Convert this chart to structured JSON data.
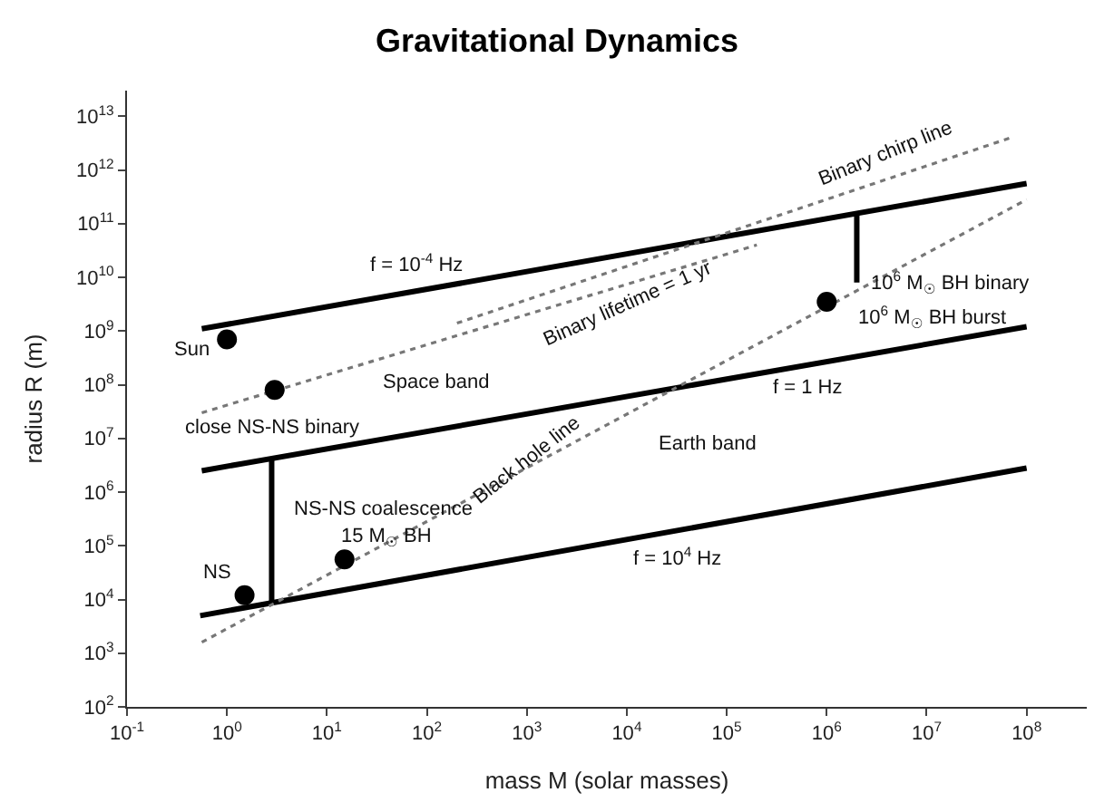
{
  "chart_data": {
    "type": "line",
    "title": "Gravitational Dynamics",
    "xlabel": "mass M (solar masses)",
    "ylabel": "radius R (m)",
    "log": "xy",
    "xlim": [
      0.1,
      400000000
    ],
    "ylim": [
      100,
      30000000000000
    ],
    "xticks": [
      {
        "value": 0.1,
        "label": "10$^{-1}$"
      },
      {
        "value": 1,
        "label": "10$^{0}$"
      },
      {
        "value": 10,
        "label": "10$^{1}$"
      },
      {
        "value": 100,
        "label": "10$^{2}$"
      },
      {
        "value": 1000,
        "label": "10$^{3}$"
      },
      {
        "value": 10000,
        "label": "10$^{4}$"
      },
      {
        "value": 100000,
        "label": "10$^{5}$"
      },
      {
        "value": 1000000,
        "label": "10$^{6}$"
      },
      {
        "value": 10000000,
        "label": "10$^{7}$"
      },
      {
        "value": 100000000,
        "label": "10$^{8}$"
      }
    ],
    "yticks": [
      {
        "value": 100,
        "label": "10$^{2}$"
      },
      {
        "value": 1000,
        "label": "10$^{3}$"
      },
      {
        "value": 10000,
        "label": "10$^{4}$"
      },
      {
        "value": 100000,
        "label": "10$^{5}$"
      },
      {
        "value": 1000000,
        "label": "10$^{6}$"
      },
      {
        "value": 10000000,
        "label": "10$^{7}$"
      },
      {
        "value": 100000000,
        "label": "10$^{8}$"
      },
      {
        "value": 1000000000,
        "label": "10$^{9}$"
      },
      {
        "value": 10000000000,
        "label": "10$^{10}$"
      },
      {
        "value": 100000000000,
        "label": "10$^{11}$"
      },
      {
        "value": 1000000000000,
        "label": "10$^{12}$"
      },
      {
        "value": 10000000000000,
        "label": "10$^{13}$"
      }
    ],
    "series": [
      {
        "color": "#000000",
        "line_style": "solid",
        "x": [
          0.56,
          100000000
        ],
        "values": [
          1100000000,
          560000000000
        ]
      },
      {
        "color": "#000000",
        "line_style": "solid",
        "x": [
          0.56,
          100000000
        ],
        "values": [
          2500000,
          1200000000
        ]
      },
      {
        "color": "#000000",
        "line_style": "solid",
        "x": [
          0.54,
          100000000
        ],
        "values": [
          5000,
          2800000
        ]
      },
      {
        "color": "#000000",
        "line_style": "solid",
        "x": [
          2.8,
          2.8
        ],
        "values": [
          8500,
          4300000
        ]
      },
      {
        "color": "#000000",
        "line_style": "solid",
        "x": [
          2000000,
          2000000
        ],
        "values": [
          8000000000,
          160000000000
        ]
      },
      {
        "color": "#777777",
        "line_style": "dotted",
        "x": [
          0.56,
          100000000
        ],
        "values": [
          1600,
          280000000000
        ]
      },
      {
        "color": "#777777",
        "line_style": "dotted",
        "x": [
          0.56,
          200000
        ],
        "values": [
          30000000,
          40000000000
        ]
      },
      {
        "color": "#777777",
        "line_style": "dotted",
        "x": [
          200,
          70000000
        ],
        "values": [
          1400000000,
          4000000000000
        ]
      },
      {
        "type": "scatter",
        "color": "#000000",
        "marker": "circle",
        "x": [
          1,
          3,
          1.5,
          15,
          1000000
        ],
        "values": [
          700000000,
          80000000,
          12000,
          56000,
          3500000000
        ]
      }
    ],
    "annotations": [
      "f = 10$^{-4}$ Hz",
      "Sun",
      "Space band",
      "close NS-NS binary",
      "Binary chirp line",
      "10$^{6}$ M$_{☉}$ BH binary",
      "10$^{6}$ M$_{☉}$ BH burst",
      "Binary lifetime = 1 yr",
      "f = 1 Hz",
      "Earth band",
      "Black hole line",
      "NS-NS coalescence",
      "15 M$_{☉}$ BH",
      "NS",
      "f = 10$^{4}$ Hz"
    ]
  }
}
